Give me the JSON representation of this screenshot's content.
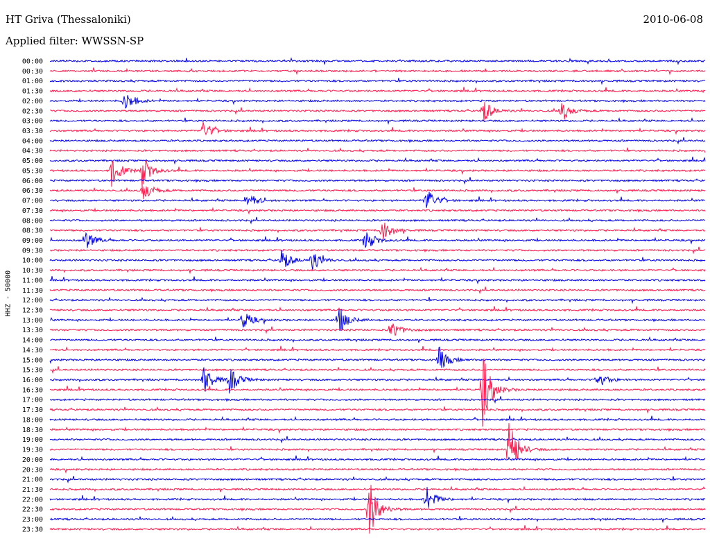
{
  "header": {
    "station": "HT Griva (Thessaloniki)",
    "date": "2010-06-08",
    "filter": "Applied filter: WWSSN-SP",
    "channel": "HHZ - 50000"
  },
  "colors": {
    "trace_a": "#0000e6",
    "trace_b": "#ff1a4d",
    "background": "#ffffff"
  },
  "chart_data": {
    "type": "line",
    "title": "HT Griva (Thessaloniki)",
    "subtitle": "Applied filter: WWSSN-SP",
    "ylabel": "HHZ - 50000",
    "rows": [
      "00:00",
      "00:30",
      "01:00",
      "01:30",
      "02:00",
      "02:30",
      "03:00",
      "03:30",
      "04:00",
      "04:30",
      "05:00",
      "05:30",
      "06:00",
      "06:30",
      "07:00",
      "07:30",
      "08:00",
      "08:30",
      "09:00",
      "09:30",
      "10:00",
      "10:30",
      "11:00",
      "11:30",
      "12:00",
      "12:30",
      "13:00",
      "13:30",
      "14:00",
      "14:30",
      "15:00",
      "15:30",
      "16:00",
      "16:30",
      "17:00",
      "17:30",
      "18:00",
      "18:30",
      "19:00",
      "19:30",
      "20:00",
      "20:30",
      "21:00",
      "21:30",
      "22:00",
      "22:30",
      "23:00",
      "23:30"
    ],
    "row_minutes": 15,
    "grid": false,
    "events": [
      {
        "row": "02:00",
        "minute": 1.7,
        "amplitude": 1.2
      },
      {
        "row": "02:30",
        "minute": 9.9,
        "amplitude": 1.3
      },
      {
        "row": "02:30",
        "minute": 11.7,
        "amplitude": 1.2
      },
      {
        "row": "03:30",
        "minute": 3.5,
        "amplitude": 1.0
      },
      {
        "row": "05:30",
        "minute": 1.4,
        "amplitude": 1.6
      },
      {
        "row": "05:30",
        "minute": 2.1,
        "amplitude": 1.6
      },
      {
        "row": "06:30",
        "minute": 2.1,
        "amplitude": 1.3
      },
      {
        "row": "07:00",
        "minute": 4.5,
        "amplitude": 1.0
      },
      {
        "row": "07:00",
        "minute": 8.6,
        "amplitude": 1.4
      },
      {
        "row": "08:30",
        "minute": 7.6,
        "amplitude": 1.3
      },
      {
        "row": "09:00",
        "minute": 0.8,
        "amplitude": 1.0
      },
      {
        "row": "09:00",
        "minute": 7.2,
        "amplitude": 1.2
      },
      {
        "row": "10:00",
        "minute": 5.3,
        "amplitude": 1.1
      },
      {
        "row": "10:00",
        "minute": 6.0,
        "amplitude": 1.0
      },
      {
        "row": "13:00",
        "minute": 4.4,
        "amplitude": 1.0
      },
      {
        "row": "13:00",
        "minute": 6.6,
        "amplitude": 1.4
      },
      {
        "row": "13:30",
        "minute": 7.8,
        "amplitude": 1.0
      },
      {
        "row": "15:00",
        "minute": 8.9,
        "amplitude": 1.3
      },
      {
        "row": "16:00",
        "minute": 3.5,
        "amplitude": 1.6
      },
      {
        "row": "16:00",
        "minute": 4.1,
        "amplitude": 1.4
      },
      {
        "row": "16:00",
        "minute": 12.5,
        "amplitude": 1.0
      },
      {
        "row": "16:30",
        "minute": 9.9,
        "amplitude": 3.5
      },
      {
        "row": "19:30",
        "minute": 10.5,
        "amplitude": 3.0
      },
      {
        "row": "22:00",
        "minute": 8.6,
        "amplitude": 1.4
      },
      {
        "row": "22:30",
        "minute": 7.3,
        "amplitude": 3.0
      }
    ]
  }
}
